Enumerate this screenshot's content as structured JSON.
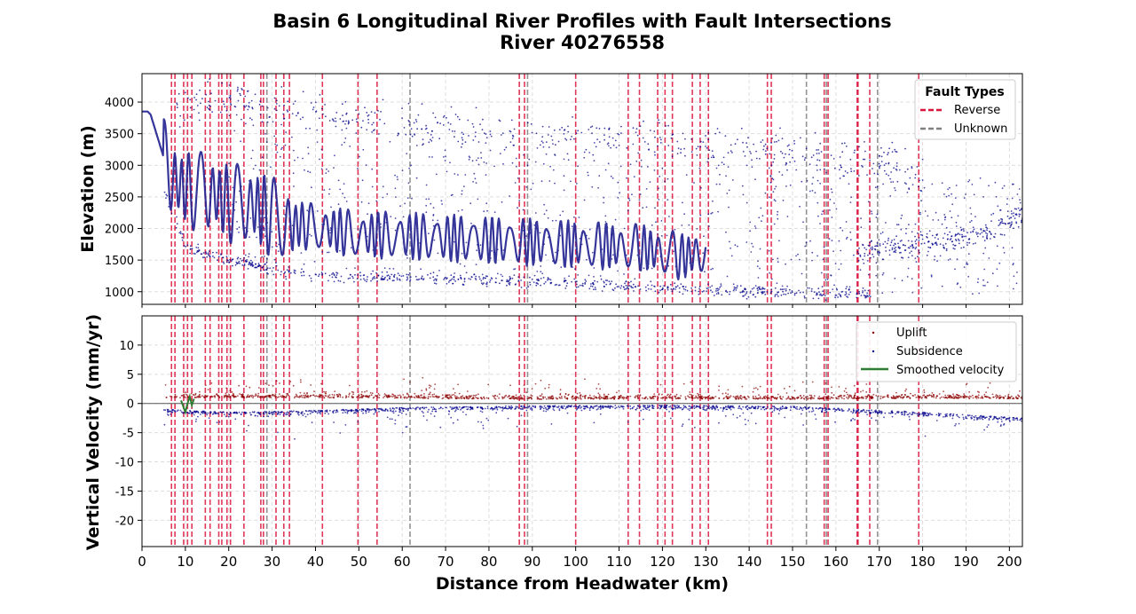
{
  "title_line1": "Basin 6 Longitudinal River Profiles with Fault Intersections",
  "title_line2": "River 40276558",
  "colors": {
    "reverse_fault": "#dc143c",
    "unknown_fault": "#808080",
    "profile_line": "#1f1f8f",
    "elevation_points": "#00008b",
    "uplift": "#8b0000",
    "subsidence": "#00008b",
    "smoothed": "#2e7d32"
  },
  "chart_data": [
    {
      "type": "scatter",
      "panel": "elevation",
      "ylabel": "Elevation (m)",
      "xlim": [
        0,
        203
      ],
      "ylim": [
        800,
        4450
      ],
      "yticks": [
        "1000",
        "1500",
        "2000",
        "2500",
        "3000",
        "3500",
        "4000"
      ],
      "grid": true,
      "legend": {
        "title": "Fault Types",
        "placement": "top-right",
        "entries": [
          "Reverse",
          "Unknown"
        ]
      },
      "faults": {
        "reverse": [
          6.8,
          7.6,
          9.6,
          10.5,
          11.5,
          14.6,
          15.7,
          17.7,
          18.4,
          19.6,
          20.4,
          23.5,
          27.4,
          28.0,
          30.9,
          32.7,
          34.0,
          41.6,
          49.8,
          54.2,
          87.0,
          88.2,
          100.0,
          112.1,
          114.7,
          118.9,
          120.6,
          122.3,
          126.9,
          128.7,
          130.6,
          144.2,
          145.1,
          157.3,
          158.2,
          164.9,
          165.1,
          167.8,
          179.1
        ],
        "unknown": [
          28.8,
          61.8,
          88.9,
          153.2,
          157.8,
          169.6
        ]
      },
      "profile_trend": {
        "x": [
          0,
          2,
          4,
          6,
          8,
          12,
          16,
          20,
          26,
          32,
          42,
          50,
          56,
          70,
          85,
          100,
          115,
          125,
          130
        ],
        "y": [
          3950,
          3800,
          3350,
          2900,
          2700,
          2600,
          2550,
          2400,
          2350,
          2100,
          2000,
          1900,
          1900,
          1850,
          1800,
          1750,
          1700,
          1550,
          1650
        ]
      },
      "scatter_bands": [
        {
          "name": "upper",
          "x": [
            8,
            20,
            30,
            50,
            70,
            90,
            110,
            130,
            150,
            170,
            180
          ],
          "y": [
            4000,
            4000,
            3900,
            3750,
            3600,
            3450,
            3400,
            3300,
            3200,
            3050,
            2800
          ]
        },
        {
          "name": "lower",
          "x": [
            5,
            10,
            20,
            30,
            40,
            60,
            80,
            100,
            120,
            140,
            160,
            168
          ],
          "y": [
            2600,
            1700,
            1500,
            1350,
            1250,
            1220,
            1180,
            1120,
            1060,
            1000,
            970,
            960
          ]
        },
        {
          "name": "right-rise",
          "x": [
            165,
            175,
            185,
            195,
            203
          ],
          "y": [
            1650,
            1700,
            1800,
            1950,
            2200
          ]
        }
      ]
    },
    {
      "type": "scatter",
      "panel": "velocity",
      "ylabel": "Vertical Velocity (mm/yr)",
      "xlabel": "Distance from Headwater (km)",
      "xlim": [
        0,
        203
      ],
      "ylim": [
        -24.5,
        15
      ],
      "yticks": [
        "-20",
        "-15",
        "-10",
        "-5",
        "0",
        "5",
        "10"
      ],
      "xticks": [
        "0",
        "10",
        "20",
        "30",
        "40",
        "50",
        "60",
        "70",
        "80",
        "90",
        "100",
        "110",
        "120",
        "130",
        "140",
        "150",
        "160",
        "170",
        "180",
        "190",
        "200"
      ],
      "grid": true,
      "legend": {
        "placement": "top-right",
        "entries": [
          "Uplift",
          "Subsidence",
          "Smoothed velocity"
        ]
      },
      "uplift_band": {
        "x": [
          5,
          30,
          60,
          90,
          120,
          150,
          180,
          203
        ],
        "y": [
          1.0,
          1.0,
          0.9,
          0.7,
          0.8,
          0.7,
          0.9,
          0.8
        ]
      },
      "subsidence_band": {
        "x": [
          5,
          20,
          40,
          60,
          90,
          120,
          150,
          180,
          203
        ],
        "y": [
          -1.0,
          -1.5,
          -1.2,
          -0.7,
          -0.4,
          -0.3,
          -0.5,
          -1.5,
          -2.5
        ]
      },
      "smoothed_velocity": {
        "x": [
          9,
          10,
          10.5,
          11,
          11.5,
          12
        ],
        "y": [
          0.5,
          -1.5,
          0.0,
          1.2,
          -0.3,
          0.8
        ]
      }
    }
  ]
}
